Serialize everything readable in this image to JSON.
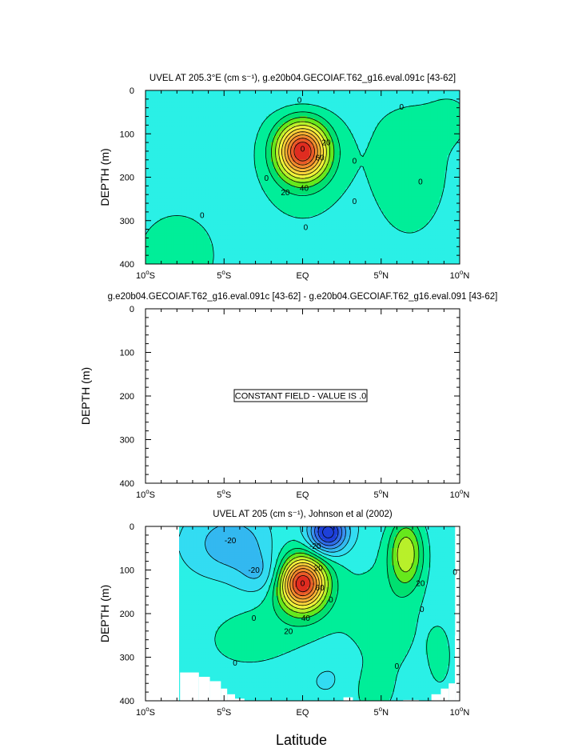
{
  "chart_data": [
    {
      "type": "heatmap",
      "title": "UVEL AT 205.3°E (cm s⁻¹), g.e20b04.GECOIAF.T62_g16.eval.091c [43-62]",
      "xlabel": "",
      "ylabel": "DEPTH (m)",
      "x_ticks": [
        "10°S",
        "5°S",
        "EQ",
        "5°N",
        "10°N"
      ],
      "x_tick_values": [
        -10,
        -5,
        0,
        5,
        10
      ],
      "y_ticks": [
        "0",
        "100",
        "200",
        "300",
        "400"
      ],
      "y_tick_values": [
        0,
        100,
        200,
        300,
        400
      ],
      "xlim": [
        -10,
        10
      ],
      "ylim": [
        400,
        0
      ],
      "contour_interval": 10,
      "field_max_estimate": 90,
      "core": {
        "lat": 0,
        "depth": 140
      },
      "contour_labels": [
        {
          "text": "0",
          "lat": 0,
          "depth": 135
        },
        {
          "text": "60",
          "lat": 1.1,
          "depth": 155
        },
        {
          "text": "20",
          "lat": 1.5,
          "depth": 120
        },
        {
          "text": "40",
          "lat": 0.1,
          "depth": 225
        },
        {
          "text": "20",
          "lat": -1.1,
          "depth": 235
        },
        {
          "text": "0",
          "lat": -0.2,
          "depth": 22
        },
        {
          "text": "0",
          "lat": 6.3,
          "depth": 38
        },
        {
          "text": "0",
          "lat": 3.3,
          "depth": 162
        },
        {
          "text": "0",
          "lat": -2.3,
          "depth": 202
        },
        {
          "text": "0",
          "lat": 3.3,
          "depth": 255
        },
        {
          "text": "0",
          "lat": 7.5,
          "depth": 210
        },
        {
          "text": "0",
          "lat": -6.4,
          "depth": 288
        },
        {
          "text": "0",
          "lat": 0.2,
          "depth": 315
        }
      ]
    },
    {
      "type": "heatmap",
      "title": "g.e20b04.GECOIAF.T62_g16.eval.091c [43-62] - g.e20b04.GECOIAF.T62_g16.eval.091 [43-62]",
      "xlabel": "",
      "ylabel": "DEPTH (m)",
      "x_ticks": [
        "10°S",
        "5°S",
        "EQ",
        "5°N",
        "10°N"
      ],
      "x_tick_values": [
        -10,
        -5,
        0,
        5,
        10
      ],
      "y_ticks": [
        "0",
        "100",
        "200",
        "300",
        "400"
      ],
      "y_tick_values": [
        0,
        100,
        200,
        300,
        400
      ],
      "xlim": [
        -10,
        10
      ],
      "ylim": [
        400,
        0
      ],
      "constant_value": 0,
      "annotation": "CONSTANT FIELD - VALUE IS .0"
    },
    {
      "type": "heatmap",
      "title": "UVEL AT 205 (cm s⁻¹), Johnson et al (2002)",
      "xlabel": "Latitude",
      "ylabel": "DEPTH (m)",
      "x_ticks": [
        "10°S",
        "5°S",
        "EQ",
        "5°N",
        "10°N"
      ],
      "x_tick_values": [
        -10,
        -5,
        0,
        5,
        10
      ],
      "y_ticks": [
        "0",
        "100",
        "200",
        "300",
        "400"
      ],
      "y_tick_values": [
        0,
        100,
        200,
        300,
        400
      ],
      "xlim": [
        -10,
        10
      ],
      "ylim": [
        400,
        0
      ],
      "contour_interval": 10,
      "data_lat_range": [
        -7.8,
        9.7
      ],
      "core": {
        "lat": 0,
        "depth": 130
      },
      "secondary_maxima": [
        {
          "lat": 6.6,
          "depth": 60,
          "value_estimate": 40
        }
      ],
      "minima": [
        {
          "lat": 1.8,
          "depth": 20,
          "value_estimate": -60
        }
      ],
      "contour_labels": [
        {
          "text": "0",
          "lat": 0,
          "depth": 130
        },
        {
          "text": "60",
          "lat": 1.1,
          "depth": 140
        },
        {
          "text": "20",
          "lat": 1.0,
          "depth": 95
        },
        {
          "text": "40",
          "lat": 0.2,
          "depth": 210
        },
        {
          "text": "20",
          "lat": -0.9,
          "depth": 240
        },
        {
          "text": "-20",
          "lat": 0.8,
          "depth": 45
        },
        {
          "text": "-20",
          "lat": -4.6,
          "depth": 32
        },
        {
          "text": "-20",
          "lat": -3.1,
          "depth": 100
        },
        {
          "text": "0",
          "lat": 1.8,
          "depth": 168
        },
        {
          "text": "0",
          "lat": -3.1,
          "depth": 210
        },
        {
          "text": "0",
          "lat": -4.3,
          "depth": 313
        },
        {
          "text": "0",
          "lat": 7.6,
          "depth": 190
        },
        {
          "text": "0",
          "lat": 9.7,
          "depth": 105
        },
        {
          "text": "20",
          "lat": 7.5,
          "depth": 130
        },
        {
          "text": "0",
          "lat": 6.0,
          "depth": 320
        }
      ]
    }
  ]
}
